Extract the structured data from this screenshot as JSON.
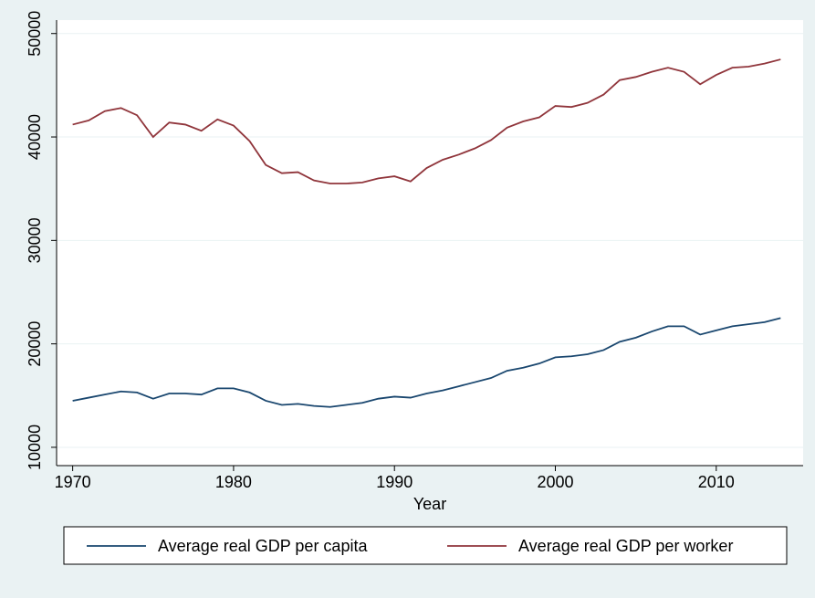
{
  "chart_data": {
    "type": "line",
    "x_label": "Year",
    "x": [
      1970,
      1971,
      1972,
      1973,
      1974,
      1975,
      1976,
      1977,
      1978,
      1979,
      1980,
      1981,
      1982,
      1983,
      1984,
      1985,
      1986,
      1987,
      1988,
      1989,
      1990,
      1991,
      1992,
      1993,
      1994,
      1995,
      1996,
      1997,
      1998,
      1999,
      2000,
      2001,
      2002,
      2003,
      2004,
      2005,
      2006,
      2007,
      2008,
      2009,
      2010,
      2011,
      2012,
      2013,
      2014
    ],
    "series": [
      {
        "name": "Average real GDP per capita",
        "color": "#1a476f",
        "values": [
          14500,
          14800,
          15100,
          15400,
          15300,
          14700,
          15200,
          15200,
          15100,
          15700,
          15700,
          15300,
          14500,
          14100,
          14200,
          14000,
          13900,
          14100,
          14300,
          14700,
          14900,
          14800,
          15200,
          15500,
          15900,
          16300,
          16700,
          17400,
          17700,
          18100,
          18700,
          18800,
          19000,
          19400,
          20200,
          20600,
          21200,
          21700,
          21700,
          20900,
          21300,
          21700,
          21900,
          22100,
          22500
        ]
      },
      {
        "name": "Average real GDP per worker",
        "color": "#90353b",
        "values": [
          41200,
          41600,
          42500,
          42800,
          42100,
          40000,
          41400,
          41200,
          40600,
          41700,
          41100,
          39600,
          37300,
          36500,
          36600,
          35800,
          35500,
          35500,
          35600,
          36000,
          36200,
          35700,
          37000,
          37800,
          38300,
          38900,
          39700,
          40900,
          41500,
          41900,
          43000,
          42900,
          43300,
          44100,
          45500,
          45800,
          46300,
          46700,
          46300,
          45100,
          46000,
          46700,
          46800,
          47100,
          47500
        ]
      }
    ],
    "xlim": [
      1969,
      2015.4
    ],
    "xticks": [
      1970,
      1980,
      1990,
      2000,
      2010
    ],
    "ylim": [
      8230,
      51300
    ],
    "yticks": [
      10000,
      20000,
      30000,
      40000,
      50000
    ],
    "grid": true,
    "legend": "bottom"
  }
}
